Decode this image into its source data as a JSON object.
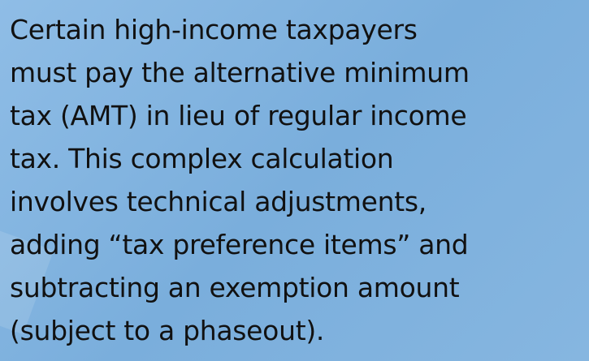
{
  "body": {
    "lines": [
      "Certain high-income taxpayers",
      "must pay the alternative minimum",
      "tax (AMT) in lieu of regular income",
      "tax. This complex calculation",
      "involves technical adjustments,",
      "adding “tax preference items” and",
      "subtracting an exemption amount",
      "(subject to a phaseout)."
    ]
  }
}
